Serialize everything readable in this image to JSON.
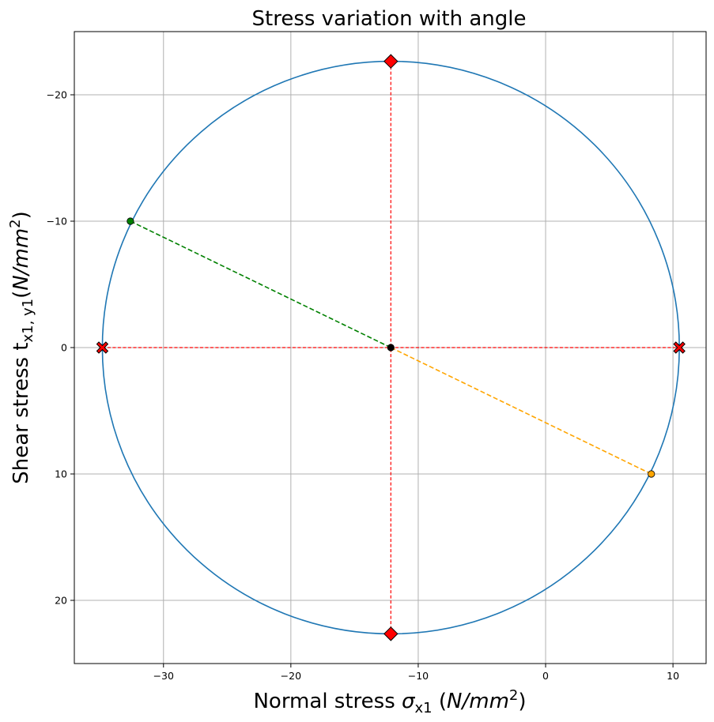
{
  "chart_data": {
    "type": "scatter",
    "title": "Stress variation with angle",
    "xlabel": {
      "prefix": "Normal stress ",
      "symbol": "σ",
      "subscript": "x1",
      "unit_open": " (",
      "unit": "N/mm",
      "unit_sup": "2",
      "unit_close": ")"
    },
    "ylabel": {
      "prefix": "Shear stress t",
      "subscript": "x1, y1",
      "unit_open": "(",
      "unit": "N/mm",
      "unit_sup": "2",
      "unit_close": ")"
    },
    "xlim": [
      -37,
      12.6
    ],
    "ylim": [
      -25,
      25
    ],
    "y_inverted": true,
    "grid": true,
    "xticks": [
      -30,
      -20,
      -10,
      0,
      10
    ],
    "yticks": [
      -20,
      -10,
      0,
      10,
      20
    ],
    "circle": {
      "center": [
        -12.15,
        0
      ],
      "radius": 22.65,
      "color": "#1f77b4"
    },
    "principal_stresses": [
      {
        "x": -34.8,
        "y": 0,
        "marker": "X",
        "color": "#ff0000"
      },
      {
        "x": 10.5,
        "y": 0,
        "marker": "X",
        "color": "#ff0000"
      }
    ],
    "max_shear_points": [
      {
        "x": -12.15,
        "y": -22.65,
        "marker": "D",
        "color": "#ff0000"
      },
      {
        "x": -12.15,
        "y": 22.65,
        "marker": "D",
        "color": "#ff0000"
      }
    ],
    "stress_points": [
      {
        "name": "state-x",
        "x": -32.6,
        "y": -10,
        "color": "#008000"
      },
      {
        "name": "state-y",
        "x": 8.3,
        "y": 10,
        "color": "#ffa500"
      },
      {
        "name": "center",
        "x": -12.15,
        "y": 0,
        "color": "#000000"
      }
    ],
    "lines": [
      {
        "name": "diameter-green",
        "from": [
          -32.6,
          -10
        ],
        "to": [
          -12.15,
          0
        ],
        "color": "#008000",
        "dash": "dashed"
      },
      {
        "name": "diameter-orange",
        "from": [
          -12.15,
          0
        ],
        "to": [
          8.3,
          10
        ],
        "color": "#ffa500",
        "dash": "dashed"
      },
      {
        "name": "horizontal-red",
        "from": [
          -34.8,
          0
        ],
        "to": [
          10.5,
          0
        ],
        "color": "#ff0000",
        "dash": "dashed"
      },
      {
        "name": "vertical-red",
        "from": [
          -12.15,
          -22.65
        ],
        "to": [
          -12.15,
          22.65
        ],
        "color": "#ff0000",
        "dash": "dashed"
      }
    ]
  }
}
